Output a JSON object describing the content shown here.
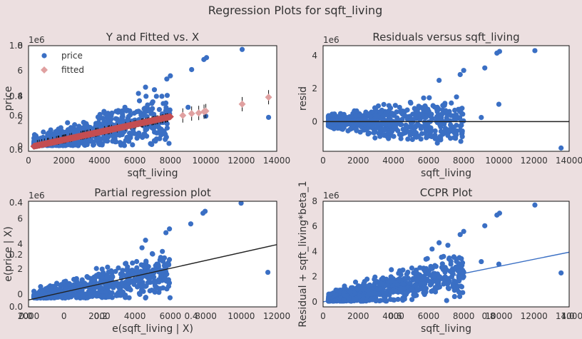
{
  "figure": {
    "title": "Regression Plots for sqft_living",
    "colors": {
      "background": "#ecdfe0",
      "points": "#3a6fc4",
      "fitted": "#c44e52",
      "fitted_legend": "#e0a0a0",
      "line": "#222222",
      "ccpr_line": "#3a6fc4"
    }
  },
  "chart_data": [
    {
      "id": "yfit",
      "type": "scatter",
      "title": "Y and Fitted vs. X",
      "xlabel": "sqft_living",
      "ylabel": "price",
      "multiplier": "1e6",
      "xlim": [
        0,
        14000
      ],
      "ylim": [
        -0.4,
        8.0
      ],
      "xticks": [
        "0",
        "2000",
        "4000",
        "6000",
        "8000",
        "10000",
        "12000",
        "14000"
      ],
      "yticks": [
        {
          "v": 0,
          "t": "0"
        },
        {
          "v": 2,
          "t": "2"
        },
        {
          "v": 4,
          "t": "4"
        },
        {
          "v": 6,
          "t": "6"
        },
        {
          "v": 8,
          "t": "8"
        }
      ],
      "ghost_ticks": [
        "1.0",
        "0.8",
        "0.6",
        "0.6"
      ],
      "legend": [
        "price",
        "fitted"
      ],
      "legend_position": "top-left",
      "fitted_line": {
        "x": [
          300,
          8000
        ],
        "y": [
          0.0,
          2.35
        ]
      },
      "fitted_outliers": [
        {
          "x": 8700,
          "y": 2.45
        },
        {
          "x": 9200,
          "y": 2.6
        },
        {
          "x": 9600,
          "y": 2.65
        },
        {
          "x": 9900,
          "y": 2.75
        },
        {
          "x": 10000,
          "y": 2.8
        },
        {
          "x": 12050,
          "y": 3.35
        },
        {
          "x": 13540,
          "y": 3.9
        }
      ],
      "outliers": [
        {
          "x": 12050,
          "y": 7.7
        },
        {
          "x": 10040,
          "y": 7.05
        },
        {
          "x": 9890,
          "y": 6.9
        },
        {
          "x": 9200,
          "y": 6.1
        },
        {
          "x": 8000,
          "y": 5.6
        },
        {
          "x": 7800,
          "y": 5.35
        },
        {
          "x": 6600,
          "y": 4.7
        },
        {
          "x": 13540,
          "y": 2.3
        },
        {
          "x": 10000,
          "y": 2.4
        },
        {
          "x": 9000,
          "y": 3.1
        },
        {
          "x": 7600,
          "y": 3.4
        },
        {
          "x": 7100,
          "y": 4.5
        },
        {
          "x": 6200,
          "y": 4.2
        }
      ]
    },
    {
      "id": "resid",
      "type": "scatter",
      "title": "Residuals versus sqft_living",
      "xlabel": "sqft_living",
      "ylabel": "resid",
      "multiplier": "1e6",
      "xlim": [
        0,
        14000
      ],
      "ylim": [
        -1.8,
        4.6
      ],
      "xticks": [
        "0",
        "2000",
        "4000",
        "6000",
        "8000",
        "10000",
        "12000",
        "14000"
      ],
      "yticks": [
        {
          "v": 0,
          "t": "0"
        },
        {
          "v": 2,
          "t": "2"
        },
        {
          "v": 4,
          "t": "4"
        }
      ],
      "zero_line": 0,
      "outliers": [
        {
          "x": 12050,
          "y": 4.3
        },
        {
          "x": 10040,
          "y": 4.25
        },
        {
          "x": 9890,
          "y": 4.15
        },
        {
          "x": 9200,
          "y": 3.25
        },
        {
          "x": 8000,
          "y": 3.1
        },
        {
          "x": 7800,
          "y": 2.85
        },
        {
          "x": 6600,
          "y": 2.5
        },
        {
          "x": 10000,
          "y": 1.05
        },
        {
          "x": 13540,
          "y": -1.6
        },
        {
          "x": 9000,
          "y": 0.25
        },
        {
          "x": 7100,
          "y": -0.5
        },
        {
          "x": 6500,
          "y": -1.3
        }
      ]
    },
    {
      "id": "partreg",
      "type": "scatter",
      "title": "Partial regression plot",
      "xlabel": "e(sqft_living | X)",
      "ylabel": "e(price | X)",
      "multiplier": "1e6",
      "xlim": [
        -2000,
        12000
      ],
      "ylim": [
        -1.0,
        7.4
      ],
      "xticks": [
        "2000",
        "0",
        "2000",
        "4000",
        "6000",
        "8000",
        "10000",
        "12000"
      ],
      "yticks": [
        {
          "v": 0,
          "t": "0"
        },
        {
          "v": 2,
          "t": "2"
        },
        {
          "v": 4,
          "t": "4"
        },
        {
          "v": 6,
          "t": "6"
        }
      ],
      "ghost_xticks": [
        "0.0",
        "0.2",
        "0.4"
      ],
      "ghost_yticks": [
        "0.4",
        "0.2",
        "0.0"
      ],
      "fit_line": {
        "x": [
          -2000,
          12000
        ],
        "y": [
          -0.45,
          3.95
        ]
      },
      "outliers": [
        {
          "x": 9990,
          "y": 7.25
        },
        {
          "x": 7960,
          "y": 6.6
        },
        {
          "x": 7840,
          "y": 6.45
        },
        {
          "x": 7150,
          "y": 5.6
        },
        {
          "x": 5950,
          "y": 5.2
        },
        {
          "x": 5750,
          "y": 4.9
        },
        {
          "x": 4600,
          "y": 4.3
        },
        {
          "x": 11500,
          "y": 1.75
        },
        {
          "x": 5900,
          "y": 2.4
        },
        {
          "x": 5000,
          "y": 3.2
        },
        {
          "x": 4400,
          "y": 3.7
        }
      ]
    },
    {
      "id": "ccpr",
      "type": "scatter",
      "title": "CCPR Plot",
      "xlabel": "sqft_living",
      "ylabel": "Residual + sqft_living*beta_1",
      "multiplier": "1e6",
      "xlim": [
        0,
        14000
      ],
      "ylim": [
        -0.4,
        8.0
      ],
      "xticks": [
        "0",
        "2000",
        "4000",
        "6000",
        "8000",
        "10000",
        "12000",
        "14000"
      ],
      "yticks": [
        {
          "v": 0,
          "t": "0"
        },
        {
          "v": 2,
          "t": "2"
        },
        {
          "v": 4,
          "t": "4"
        },
        {
          "v": 6,
          "t": "6"
        },
        {
          "v": 8,
          "t": "8"
        }
      ],
      "ghost_xticks": [
        "0.6",
        "0.8",
        "1.0"
      ],
      "fit_line": {
        "x": [
          0,
          14000
        ],
        "y": [
          0.0,
          3.95
        ]
      },
      "outliers": [
        {
          "x": 12050,
          "y": 7.7
        },
        {
          "x": 10040,
          "y": 7.05
        },
        {
          "x": 9890,
          "y": 6.9
        },
        {
          "x": 9200,
          "y": 6.05
        },
        {
          "x": 8000,
          "y": 5.6
        },
        {
          "x": 7800,
          "y": 5.35
        },
        {
          "x": 6600,
          "y": 4.7
        },
        {
          "x": 13540,
          "y": 2.3
        },
        {
          "x": 10000,
          "y": 3.0
        },
        {
          "x": 9000,
          "y": 3.2
        },
        {
          "x": 7600,
          "y": 3.4
        },
        {
          "x": 7100,
          "y": 4.5
        },
        {
          "x": 6200,
          "y": 4.2
        }
      ]
    }
  ]
}
